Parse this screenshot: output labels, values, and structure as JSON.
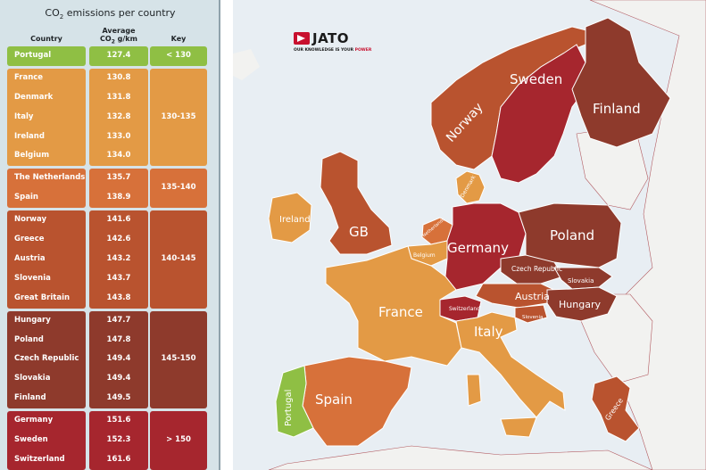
{
  "panel": {
    "title_pre": "CO",
    "title_sub": "2",
    "title_post": " emissions per country",
    "col_country": "Country",
    "col_avg_line1": "Average",
    "col_avg_pre": "CO",
    "col_avg_sub": "2",
    "col_avg_post": " g/km",
    "col_key": "Key"
  },
  "colors": {
    "green": "#8fbf44",
    "light_orange": "#e39a45",
    "orange": "#d7713a",
    "rust": "#b9532f",
    "brown": "#8e3a2c",
    "red": "#a6262e",
    "panel_bg": "#d6e3e8"
  },
  "rows": [
    {
      "country": "Portugal",
      "value": "127.4"
    },
    {
      "country": "France",
      "value": "130.8"
    },
    {
      "country": "Denmark",
      "value": "131.8"
    },
    {
      "country": "Italy",
      "value": "132.8"
    },
    {
      "country": "Ireland",
      "value": "133.0"
    },
    {
      "country": "Belgium",
      "value": "134.0"
    },
    {
      "country": "The Netherlands",
      "value": "135.7"
    },
    {
      "country": "Spain",
      "value": "138.9"
    },
    {
      "country": "Norway",
      "value": "141.6"
    },
    {
      "country": "Greece",
      "value": "142.6"
    },
    {
      "country": "Austria",
      "value": "143.2"
    },
    {
      "country": "Slovenia",
      "value": "143.7"
    },
    {
      "country": "Great Britain",
      "value": "143.8"
    },
    {
      "country": "Hungary",
      "value": "147.7"
    },
    {
      "country": "Poland",
      "value": "147.8"
    },
    {
      "country": "Czech Republic",
      "value": "149.4"
    },
    {
      "country": "Slovakia",
      "value": "149.4"
    },
    {
      "country": "Finland",
      "value": "149.5"
    },
    {
      "country": "Germany",
      "value": "151.6"
    },
    {
      "country": "Sweden",
      "value": "152.3"
    },
    {
      "country": "Switzerland",
      "value": "161.6"
    }
  ],
  "groups": [
    {
      "key": "< 130",
      "color_name": "green",
      "start": 0,
      "count": 1
    },
    {
      "key": "130-135",
      "color_name": "light_orange",
      "start": 1,
      "count": 5
    },
    {
      "key": "135-140",
      "color_name": "orange",
      "start": 6,
      "count": 2
    },
    {
      "key": "140-145",
      "color_name": "rust",
      "start": 8,
      "count": 5
    },
    {
      "key": "145-150",
      "color_name": "brown",
      "start": 13,
      "count": 5
    },
    {
      "key": "> 150",
      "color_name": "red",
      "start": 18,
      "count": 3
    }
  ],
  "logo": {
    "name": "JATO",
    "tagline_pre": "OUR KNOWLEDGE IS YOUR ",
    "tagline_accent": "POWER"
  },
  "map_labels": {
    "sweden": "Sweden",
    "finland": "Finland",
    "norway": "Norway",
    "denmark": "Denmark",
    "ireland": "Ireland",
    "gb": "GB",
    "netherlands": "Netherlands",
    "belgium": "Belgium",
    "germany": "Germany",
    "poland": "Poland",
    "czech": "Czech Republic",
    "slovakia": "Slovakia",
    "austria": "Austria",
    "hungary": "Hungary",
    "switzerland": "Switzerland",
    "slovenia": "Slovenia",
    "france": "France",
    "italy": "Italy",
    "spain": "Spain",
    "portugal": "Portugal",
    "greece": "Greece"
  }
}
